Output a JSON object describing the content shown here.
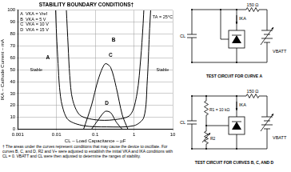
{
  "chart_data": {
    "type": "line",
    "title": "STABILITY BOUNDARY CONDITIONS†",
    "x_label": "CL – Load Capacitance – µF",
    "y_label": "IKA – Cathode Current – mA",
    "series": [
      {
        "name": "A",
        "condition": "VKA = Vref",
        "color": "#000000",
        "x": [
          0.0095,
          0.01,
          0.011,
          0.012,
          0.014,
          0.02,
          0.05,
          0.2,
          1,
          1.8,
          2.2,
          2.5,
          2.7
        ],
        "values": [
          100,
          80,
          55,
          35,
          20,
          8,
          3,
          2,
          3,
          10,
          40,
          80,
          100
        ]
      },
      {
        "name": "B",
        "condition": "VKA = 5 V",
        "color": "#000000",
        "x": [
          0.018,
          0.02,
          0.022,
          0.026,
          0.04,
          0.1,
          0.3,
          0.8,
          1.2,
          1.5,
          1.7,
          1.8
        ],
        "values": [
          100,
          70,
          45,
          25,
          12,
          8,
          8,
          12,
          30,
          60,
          85,
          100
        ]
      },
      {
        "name": "C",
        "condition": "VKA = 10 V",
        "color": "#000000",
        "x": [
          0.05,
          0.08,
          0.12,
          0.18,
          0.25,
          0.35,
          0.5,
          0.7
        ],
        "values": [
          0,
          20,
          42,
          55,
          52,
          35,
          12,
          0
        ]
      },
      {
        "name": "D",
        "condition": "VKA = 15 V",
        "color": "#000000",
        "x": [
          0.08,
          0.12,
          0.18,
          0.25,
          0.35,
          0.5
        ],
        "values": [
          0,
          8,
          15,
          14,
          6,
          0
        ]
      }
    ],
    "xlim": [
      0.001,
      10
    ],
    "xticks": [
      0.001,
      0.01,
      0.1,
      1,
      10
    ],
    "ylim": [
      0,
      100
    ],
    "yticks": [
      0,
      10,
      20,
      30,
      40,
      50,
      60,
      70,
      80,
      90,
      100
    ],
    "log": "x",
    "grid": true,
    "annotations": [
      {
        "text": "TA = 25°C",
        "x": 5.5,
        "y": 94
      },
      {
        "text": "Stable",
        "x": 0.003,
        "y": 50
      },
      {
        "text": "Stable",
        "x": 5.5,
        "y": 50
      },
      {
        "text": "A",
        "x": 0.006,
        "y": 60
      },
      {
        "text": "B",
        "x": 0.3,
        "y": 75
      },
      {
        "text": "C",
        "x": 0.25,
        "y": 62
      },
      {
        "text": "D",
        "x": 0.2,
        "y": 22
      }
    ],
    "footnote": "† The areas under the curves represent conditions that may cause the device to oscillate. For curves B, C, and D, R2 and V+ were adjusted to establish the initial VKA and IKA conditions with CL = 0. VBATT and CL were then adjusted to determine the ranges of stability."
  },
  "circuits": [
    {
      "caption": "TEST CIRCUIT FOR CURVE A",
      "resistor": "150 Ω",
      "current": "IKA",
      "capacitor": "CL",
      "battery": "VBATT"
    },
    {
      "caption": "TEST CIRCUIT FOR CURVES B, C, AND D",
      "resistor": "150 Ω",
      "current": "IKA",
      "capacitor": "CL",
      "battery": "VBATT",
      "r1": "R1 = 10 kΩ",
      "r2": "R2"
    }
  ]
}
